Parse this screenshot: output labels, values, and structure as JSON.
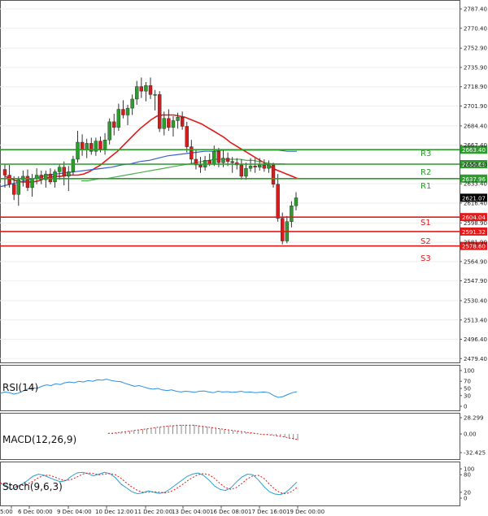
{
  "chart_data": {
    "type": "candlestick",
    "instrument_note": "Gold H4 technical chart with pivot levels",
    "price_axis": {
      "ticks": [
        2787.4,
        2770.4,
        2752.9,
        2735.9,
        2718.9,
        2701.9,
        2684.4,
        2667.4,
        2650.4,
        2633.4,
        2616.4,
        2598.9,
        2581.9,
        2564.9,
        2547.9,
        2530.4,
        2513.4,
        2496.4,
        2479.4
      ],
      "tick_labels": [
        "2787.40",
        "2770.40",
        "2752.90",
        "2735.90",
        "2718.90",
        "2701.90",
        "2684.40",
        "2667.40",
        "2650.40",
        "2633.40",
        "2616.40",
        "2598.90",
        "2581.90",
        "2564.90",
        "2547.90",
        "2530.40",
        "2513.40",
        "2496.40",
        "2479.40"
      ],
      "ylim": [
        2476,
        2791
      ]
    },
    "time_axis": {
      "labels": [
        "5:00",
        "6 Dec 00:00",
        "9 Dec 04:00",
        "10 Dec 12:00",
        "11 Dec 20:00",
        "13 Dec 04:00",
        "16 Dec 08:00",
        "17 Dec 16:00",
        "19 Dec 00:00"
      ]
    },
    "current_price": "2621.07",
    "levels": [
      {
        "name": "R3",
        "value": 2663.4,
        "label": "2663.40",
        "kind": "resistance",
        "color": "#2a9d2a"
      },
      {
        "name": "R2",
        "value": 2650.68,
        "label": "2650.68",
        "kind": "resistance",
        "color": "#2a9d2a"
      },
      {
        "name": "R1",
        "value": 2637.96,
        "label": "2637.96",
        "kind": "resistance",
        "color": "#2a9d2a"
      },
      {
        "name": "S1",
        "value": 2604.04,
        "label": "2604.04",
        "kind": "support",
        "color": "#e01b1b"
      },
      {
        "name": "S2",
        "value": 2591.32,
        "label": "2591.32",
        "kind": "support",
        "color": "#e01b1b"
      },
      {
        "name": "S3",
        "value": 2578.6,
        "label": "2578.60",
        "kind": "support",
        "color": "#e01b1b"
      }
    ],
    "candles": [
      [
        2646,
        2651,
        2630,
        2641
      ],
      [
        2641,
        2650,
        2630,
        2633
      ],
      [
        2633,
        2640,
        2619,
        2624
      ],
      [
        2624,
        2640,
        2614,
        2637
      ],
      [
        2637,
        2645,
        2631,
        2640
      ],
      [
        2640,
        2646,
        2627,
        2630
      ],
      [
        2630,
        2642,
        2622,
        2638
      ],
      [
        2638,
        2647,
        2633,
        2641
      ],
      [
        2641,
        2645,
        2633,
        2637
      ],
      [
        2637,
        2645,
        2630,
        2642
      ],
      [
        2642,
        2647,
        2633,
        2635
      ],
      [
        2635,
        2646,
        2630,
        2644
      ],
      [
        2644,
        2651,
        2637,
        2648
      ],
      [
        2648,
        2653,
        2632,
        2640
      ],
      [
        2640,
        2649,
        2627,
        2644
      ],
      [
        2644,
        2658,
        2641,
        2655
      ],
      [
        2655,
        2680,
        2652,
        2670
      ],
      [
        2670,
        2677,
        2658,
        2663
      ],
      [
        2663,
        2673,
        2656,
        2669
      ],
      [
        2669,
        2674,
        2659,
        2662
      ],
      [
        2662,
        2674,
        2658,
        2671
      ],
      [
        2671,
        2675,
        2661,
        2664
      ],
      [
        2664,
        2678,
        2659,
        2672
      ],
      [
        2672,
        2691,
        2668,
        2688
      ],
      [
        2688,
        2695,
        2676,
        2683
      ],
      [
        2683,
        2704,
        2680,
        2699
      ],
      [
        2699,
        2707,
        2691,
        2694
      ],
      [
        2694,
        2703,
        2685,
        2700
      ],
      [
        2700,
        2712,
        2694,
        2708
      ],
      [
        2708,
        2724,
        2703,
        2719
      ],
      [
        2719,
        2727,
        2709,
        2715
      ],
      [
        2715,
        2723,
        2706,
        2720
      ],
      [
        2720,
        2727,
        2708,
        2712
      ],
      [
        2712,
        2716,
        2698,
        2712
      ],
      [
        2712,
        2715,
        2679,
        2682
      ],
      [
        2682,
        2697,
        2676,
        2691
      ],
      [
        2691,
        2699,
        2680,
        2683
      ],
      [
        2683,
        2693,
        2675,
        2689
      ],
      [
        2689,
        2696,
        2682,
        2692
      ],
      [
        2692,
        2697,
        2681,
        2684
      ],
      [
        2684,
        2688,
        2661,
        2666
      ],
      [
        2666,
        2672,
        2651,
        2655
      ],
      [
        2655,
        2664,
        2646,
        2650
      ],
      [
        2650,
        2657,
        2643,
        2648
      ],
      [
        2648,
        2658,
        2645,
        2654
      ],
      [
        2654,
        2660,
        2649,
        2651
      ],
      [
        2651,
        2667,
        2649,
        2662
      ],
      [
        2662,
        2665,
        2648,
        2652
      ],
      [
        2652,
        2663,
        2648,
        2656
      ],
      [
        2656,
        2661,
        2649,
        2653
      ],
      [
        2653,
        2657,
        2643,
        2652
      ],
      [
        2652,
        2656,
        2646,
        2650
      ],
      [
        2650,
        2655,
        2637,
        2640
      ],
      [
        2640,
        2652,
        2637,
        2647
      ],
      [
        2647,
        2656,
        2644,
        2649
      ],
      [
        2649,
        2656,
        2643,
        2648
      ],
      [
        2648,
        2656,
        2645,
        2650
      ],
      [
        2650,
        2655,
        2644,
        2647
      ],
      [
        2647,
        2654,
        2643,
        2650
      ],
      [
        2650,
        2652,
        2630,
        2633
      ],
      [
        2633,
        2642,
        2600,
        2603
      ],
      [
        2603,
        2608,
        2580,
        2583
      ],
      [
        2583,
        2605,
        2581,
        2600
      ],
      [
        2600,
        2618,
        2595,
        2614
      ],
      [
        2614,
        2626,
        2610,
        2621
      ]
    ],
    "moving_averages": [
      {
        "name": "MA red",
        "color": "#e01b1b",
        "values": [
          2640,
          2638,
          2636,
          2635,
          2635,
          2635,
          2636,
          2638,
          2639,
          2640,
          2640,
          2641,
          2641,
          2641,
          2642,
          2644,
          2647,
          2650,
          2654,
          2658,
          2662,
          2667,
          2672,
          2677,
          2682,
          2686,
          2690,
          2693,
          2694,
          2694,
          2694,
          2693,
          2692,
          2690,
          2688,
          2686,
          2683,
          2680,
          2677,
          2674,
          2670,
          2667,
          2664,
          2661,
          2658,
          2655,
          2652,
          2649,
          2646,
          2644,
          2642,
          2640,
          2638
        ]
      },
      {
        "name": "MA blue",
        "color": "#3a5fcd",
        "values": [
          2630,
          2631,
          2633,
          2635,
          2637,
          2639,
          2641,
          2642,
          2643,
          2644,
          2645,
          2646,
          2647,
          2648,
          2650,
          2651,
          2653,
          2654,
          2656,
          2658,
          2659,
          2660,
          2661,
          2662,
          2662,
          2663,
          2663,
          2663,
          2663,
          2663,
          2663,
          2663,
          2662,
          2662
        ]
      },
      {
        "name": "MA green",
        "color": "#4fae4f",
        "values": [
          2636,
          2636,
          2637,
          2638,
          2638,
          2639,
          2640,
          2641,
          2642,
          2643,
          2644,
          2645,
          2646,
          2647,
          2648,
          2649,
          2650,
          2651,
          2652,
          2653,
          2654,
          2655,
          2655,
          2655,
          2655,
          2655,
          2654,
          2654,
          2653,
          2652,
          2651,
          2651,
          2651
        ]
      }
    ],
    "indicators": [
      {
        "name": "RSI(14)",
        "label": "RSI(14)",
        "tick_labels": [
          "100",
          "70",
          "50",
          "30",
          "0"
        ],
        "ticks": [
          100,
          70,
          50,
          30,
          0
        ],
        "range": [
          0,
          100
        ],
        "values": [
          36,
          40,
          38,
          34,
          37,
          43,
          48,
          52,
          50,
          56,
          60,
          58,
          63,
          61,
          66,
          68,
          66,
          70,
          68,
          72,
          70,
          74,
          73,
          76,
          72,
          70,
          69,
          64,
          60,
          56,
          58,
          54,
          50,
          48,
          50,
          46,
          44,
          46,
          42,
          40,
          42,
          41,
          39,
          42,
          43,
          40,
          38,
          42,
          40,
          41,
          39,
          40,
          42,
          39,
          40,
          38,
          39,
          40,
          38,
          30,
          25,
          27,
          33,
          38,
          41
        ]
      },
      {
        "name": "MACD(12,26,9)",
        "label": "MACD(12,26,9)",
        "tick_labels": [
          "28.299",
          "0.00",
          "-32.425"
        ],
        "ticks": [
          28.299,
          0,
          -32.425
        ],
        "range": [
          -32.425,
          28.299
        ],
        "values": [
          1,
          2,
          2,
          3,
          4,
          5,
          6,
          7,
          8,
          9,
          10,
          11,
          12,
          13,
          14,
          15,
          15,
          16,
          16,
          16,
          16,
          15,
          14,
          13,
          12,
          10,
          9,
          8,
          7,
          6,
          5,
          4,
          3,
          2,
          1,
          0,
          -1,
          -2,
          -2,
          -3,
          -4,
          -6,
          -8,
          -10,
          -11
        ],
        "signal": [
          1,
          1,
          2,
          3,
          4,
          5,
          6,
          7,
          8,
          9,
          10,
          11,
          12,
          13,
          14,
          14,
          15,
          15,
          15,
          15,
          15,
          14,
          13,
          12,
          11,
          10,
          9,
          8,
          7,
          6,
          5,
          4,
          3,
          2,
          1,
          0,
          -1,
          -1,
          -2,
          -3,
          -4,
          -5,
          -7,
          -8,
          -10
        ]
      },
      {
        "name": "Stoch(9,6,3)",
        "label": "Stoch(9,6,3)",
        "tick_labels": [
          "100",
          "80",
          "20",
          "0"
        ],
        "ticks": [
          100,
          80,
          20,
          0
        ],
        "range": [
          0,
          100
        ],
        "k": [
          50,
          45,
          30,
          38,
          48,
          60,
          75,
          82,
          78,
          70,
          62,
          56,
          60,
          75,
          86,
          88,
          84,
          76,
          82,
          88,
          84,
          70,
          48,
          35,
          22,
          15,
          18,
          25,
          20,
          16,
          20,
          32,
          46,
          60,
          74,
          82,
          86,
          78,
          62,
          42,
          30,
          26,
          35,
          55,
          72,
          82,
          80,
          62,
          40,
          22,
          14,
          12,
          20,
          36,
          55
        ],
        "d": [
          52,
          50,
          44,
          40,
          42,
          48,
          58,
          70,
          78,
          78,
          72,
          64,
          60,
          64,
          72,
          82,
          86,
          84,
          80,
          82,
          84,
          80,
          68,
          52,
          38,
          26,
          20,
          20,
          22,
          20,
          18,
          22,
          32,
          44,
          58,
          70,
          80,
          84,
          80,
          68,
          50,
          36,
          30,
          36,
          50,
          66,
          76,
          78,
          68,
          48,
          30,
          18,
          15,
          22,
          36
        ]
      }
    ]
  }
}
